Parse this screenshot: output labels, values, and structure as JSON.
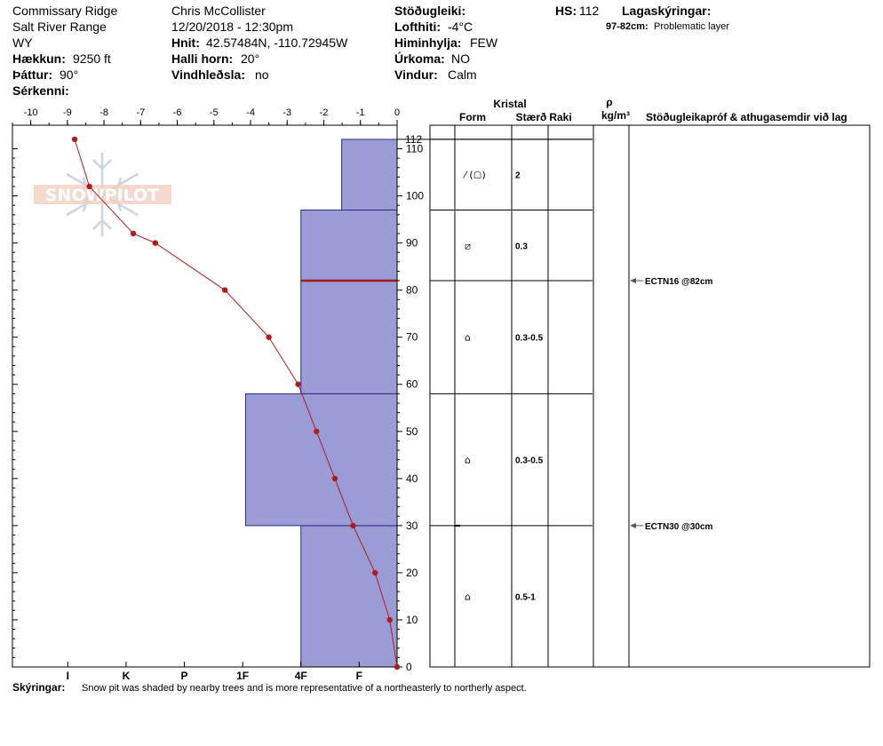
{
  "header": {
    "location": "Commissary Ridge",
    "range": "Salt River Range",
    "state": "WY",
    "elevation_label": "Hækkun:",
    "elevation_value": "9250 ft",
    "aspect_label": "Þáttur:",
    "aspect_value": "90°",
    "features_label": "Sérkenni:",
    "observer": "Chris McCollister",
    "datetime": "12/20/2018 - 12:30pm",
    "coords_label": "Hnit:",
    "coords_value": "42.57484N, -110.72945W",
    "slope_label": "Halli horn:",
    "slope_value": "20°",
    "wind_loading_label": "Vindhleðsla:",
    "wind_loading_value": "no",
    "stability_label": "Stöðugleiki:",
    "air_temp_label": "Lofthiti:",
    "air_temp_value": "-4°C",
    "sky_label": "Himinhylja:",
    "sky_value": "FEW",
    "precip_label": "Úrkoma:",
    "precip_value": "NO",
    "wind_label": "Vindur:",
    "wind_value": "Calm",
    "hs_label": "HS:",
    "hs_value": "112",
    "layer_notes_label": "Lagaskýringar:",
    "layer_note_range": "97-82cm:",
    "layer_note_text": "Problematic layer"
  },
  "footer": {
    "notes_label": "Skýringar:",
    "notes_text": "Snow pit was shaded by nearby trees and is more representative of a northeasterly to northerly aspect."
  },
  "logo_text": "SNOWPILOT",
  "colors": {
    "hardness_fill": "#9b9bd6",
    "hardness_stroke": "#2a2a8a",
    "temp_line": "#b01c1c",
    "problem_line": "#a01818"
  },
  "chart_data": {
    "type": "snow-profile",
    "temp_axis_ticks": [
      "-10",
      "-9",
      "-8",
      "-7",
      "-6",
      "-5",
      "-4",
      "-3",
      "-2",
      "-1",
      "0"
    ],
    "temp_range": [
      -10.5,
      0
    ],
    "depth_range": [
      0,
      115
    ],
    "depth_ticks": [
      "0",
      "10",
      "20",
      "30",
      "40",
      "50",
      "60",
      "70",
      "80",
      "90",
      "100",
      "110"
    ],
    "hs_tick": "112",
    "hardness_scale": [
      {
        "label": "I",
        "value": 1
      },
      {
        "label": "K",
        "value": 2
      },
      {
        "label": "P",
        "value": 3
      },
      {
        "label": "1F",
        "value": 4
      },
      {
        "label": "4F",
        "value": 5
      },
      {
        "label": "F",
        "value": 6
      }
    ],
    "temperature_profile": [
      {
        "depth": 0,
        "temp": 0
      },
      {
        "depth": 10,
        "temp": -0.2
      },
      {
        "depth": 20,
        "temp": -0.6
      },
      {
        "depth": 30,
        "temp": -1.2
      },
      {
        "depth": 40,
        "temp": -1.7
      },
      {
        "depth": 50,
        "temp": -2.2
      },
      {
        "depth": 60,
        "temp": -2.7
      },
      {
        "depth": 70,
        "temp": -3.5
      },
      {
        "depth": 80,
        "temp": -4.7
      },
      {
        "depth": 90,
        "temp": -6.6
      },
      {
        "depth": 92,
        "temp": -7.2
      },
      {
        "depth": 102,
        "temp": -8.4
      },
      {
        "depth": 112,
        "temp": -8.8
      }
    ],
    "hardness_layers": [
      {
        "bottom": 0,
        "top": 30,
        "hardness": "4F",
        "hardness_value": 5
      },
      {
        "bottom": 30,
        "top": 58,
        "hardness": "1F",
        "hardness_value": 4.05
      },
      {
        "bottom": 58,
        "top": 97,
        "hardness": "4F",
        "hardness_value": 5
      },
      {
        "bottom": 97,
        "top": 112,
        "hardness": "F-",
        "hardness_value": 5.7
      }
    ],
    "problem_layer_depth": 82,
    "column_headers": {
      "crystal": "Kristal",
      "form": "Form",
      "size": "Stærð",
      "moisture": "Raki",
      "rho": "ρ",
      "density_unit": "kg/m³",
      "tests": "Stöðugleikapróf & athugasemdir við lag"
    },
    "layers": [
      {
        "top": 112,
        "bottom": 97,
        "form_symbol": "⁄ (☖)",
        "size": "2"
      },
      {
        "top": 97,
        "bottom": 82,
        "form_symbol": "⧄",
        "size": "0.3"
      },
      {
        "top": 82,
        "bottom": 58,
        "form_symbol": "⌂",
        "size": "0.3-0.5"
      },
      {
        "top": 58,
        "bottom": 30,
        "form_symbol": "⌂",
        "size": "0.3-0.5"
      },
      {
        "top": 30,
        "bottom": 0,
        "form_symbol": "⌂",
        "size": "0.5-1"
      }
    ],
    "stability_tests": [
      {
        "depth": 82,
        "text": "ECTN16 @82cm"
      },
      {
        "depth": 30,
        "text": "ECTN30 @30cm"
      }
    ]
  }
}
